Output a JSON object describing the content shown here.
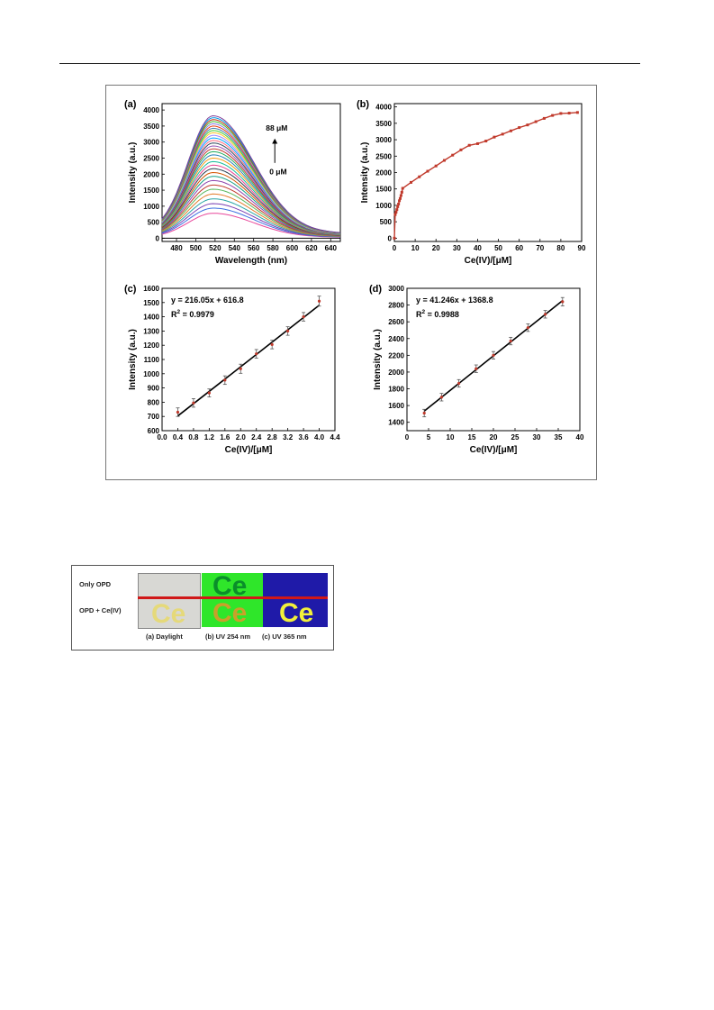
{
  "figure1": {
    "panels": {
      "a": {
        "label": "(a)",
        "annotation_top": "88 μM",
        "annotation_bottom": "0 μM"
      },
      "b": {
        "label": "(b)"
      },
      "c": {
        "label": "(c)",
        "equation": "y = 216.05x + 616.8",
        "r2_prefix": "R",
        "r2_sup": "2",
        "r2_value": " = 0.9979"
      },
      "d": {
        "label": "(d)",
        "equation": "y = 41.246x + 1368.8",
        "r2_prefix": "R",
        "r2_sup": "2",
        "r2_value": " = 0.9988"
      }
    }
  },
  "chart_data": [
    {
      "id": "a",
      "type": "line",
      "xlabel": "Wavelength (nm)",
      "ylabel": "Intensity (a.u.)",
      "xlim": [
        465,
        650
      ],
      "ylim": [
        -100,
        4200
      ],
      "xticks": [
        480,
        500,
        520,
        540,
        560,
        580,
        600,
        620,
        640
      ],
      "yticks": [
        0,
        500,
        1000,
        1500,
        2000,
        2500,
        3000,
        3500,
        4000
      ],
      "peak_x": 518,
      "series_note": "emission spectra, Ce(IV) 0–88 μM",
      "peak_intensities": [
        0,
        780,
        940,
        1080,
        1230,
        1380,
        1530,
        1660,
        1800,
        1930,
        2050,
        2170,
        2280,
        2390,
        2500,
        2600,
        2700,
        2790,
        2880,
        2970,
        3050,
        3130,
        3210,
        3290,
        3360,
        3430,
        3500,
        3570,
        3640,
        3700,
        3760,
        3820
      ],
      "series_colors": [
        "#000000",
        "#e8479a",
        "#3d6fe0",
        "#7a3fb3",
        "#2aa6a6",
        "#e37d2b",
        "#5cb85c",
        "#c0392b",
        "#8e44ad",
        "#16a085",
        "#d35400",
        "#2c3e50",
        "#e84393",
        "#1abc9c",
        "#f39c12",
        "#2980b9",
        "#27ae60",
        "#c0392b",
        "#9b59b6",
        "#34495e",
        "#ff6b81",
        "#00a8ff",
        "#9c88ff",
        "#fbc531",
        "#4cd137",
        "#487eb0",
        "#e84118",
        "#8c7ae6",
        "#44bd32",
        "#c23616",
        "#0097e6",
        "#7f3f98"
      ]
    },
    {
      "id": "b",
      "type": "line",
      "xlabel": "Ce(IV)/[μM]",
      "ylabel": "Intensity (a.u.)",
      "xlim": [
        0,
        90
      ],
      "ylim": [
        -100,
        4100
      ],
      "xticks": [
        0,
        10,
        20,
        30,
        40,
        50,
        60,
        70,
        80,
        90
      ],
      "yticks": [
        0,
        500,
        1000,
        1500,
        2000,
        2500,
        3000,
        3500,
        4000
      ],
      "x": [
        0,
        0.4,
        0.8,
        1.2,
        1.6,
        2.0,
        2.4,
        2.8,
        3.2,
        3.6,
        4.0,
        8,
        12,
        16,
        20,
        24,
        28,
        32,
        36,
        40,
        44,
        48,
        52,
        56,
        60,
        64,
        68,
        72,
        76,
        80,
        84,
        88
      ],
      "values": [
        0,
        720,
        790,
        870,
        960,
        1040,
        1140,
        1210,
        1300,
        1400,
        1520,
        1700,
        1870,
        2040,
        2200,
        2370,
        2530,
        2690,
        2830,
        2880,
        2960,
        3080,
        3170,
        3270,
        3370,
        3450,
        3550,
        3650,
        3740,
        3800,
        3810,
        3830
      ],
      "color": "#c0392b"
    },
    {
      "id": "c",
      "type": "scatter",
      "xlabel": "Ce(IV)/[μM]",
      "ylabel": "Intensity (a.u.)",
      "xlim": [
        0,
        4.4
      ],
      "ylim": [
        600,
        1600
      ],
      "xticks": [
        "0.0",
        "0.4",
        "0.8",
        "1.2",
        "1.6",
        "2.0",
        "2.4",
        "2.8",
        "3.2",
        "3.6",
        "4.0",
        "4.4"
      ],
      "yticks": [
        600,
        700,
        800,
        900,
        1000,
        1100,
        1200,
        1300,
        1400,
        1500,
        1600
      ],
      "x": [
        0.4,
        0.8,
        1.2,
        1.6,
        2.0,
        2.4,
        2.8,
        3.2,
        3.6,
        4.0
      ],
      "values": [
        730,
        795,
        865,
        955,
        1035,
        1140,
        1205,
        1300,
        1400,
        1510
      ],
      "error": [
        30,
        30,
        28,
        30,
        32,
        30,
        30,
        30,
        30,
        35
      ],
      "fit": {
        "slope": 216.05,
        "intercept": 616.8
      },
      "color": "#c0392b"
    },
    {
      "id": "d",
      "type": "scatter",
      "xlabel": "Ce(IV)/[μM]",
      "ylabel": "Intensity (a.u.)",
      "xlim": [
        0,
        40
      ],
      "ylim": [
        1300,
        3000
      ],
      "xticks": [
        0,
        5,
        10,
        15,
        20,
        25,
        30,
        35,
        40
      ],
      "yticks": [
        1400,
        1600,
        1800,
        2000,
        2200,
        2400,
        2600,
        2800,
        3000
      ],
      "x": [
        4,
        8,
        12,
        16,
        20,
        24,
        28,
        32,
        36
      ],
      "values": [
        1510,
        1700,
        1865,
        2040,
        2200,
        2370,
        2530,
        2690,
        2840
      ],
      "error": [
        45,
        45,
        45,
        45,
        45,
        45,
        45,
        45,
        50
      ],
      "fit": {
        "slope": 41.246,
        "intercept": 1368.8
      },
      "color": "#c0392b"
    }
  ],
  "photo": {
    "row_labels": [
      "Only OPD",
      "OPD + Ce(IV)"
    ],
    "captions": [
      "(a) Daylight",
      "(b) UV 254 nm",
      "(c) UV 365 nm"
    ],
    "glyph": "Ce",
    "colors": {
      "daylight_bg": "#d8d8d4",
      "uv254_bg": "#2fe62a",
      "uv365_bg": "#1f1aa8",
      "daylight_glyph": "#e5d97a",
      "uv254_glyph_top": "#0a8f2a",
      "uv254_glyph_bottom": "#c9a12a",
      "uv365_glyph": "#f2f03a",
      "red_line": "#d01818"
    }
  }
}
